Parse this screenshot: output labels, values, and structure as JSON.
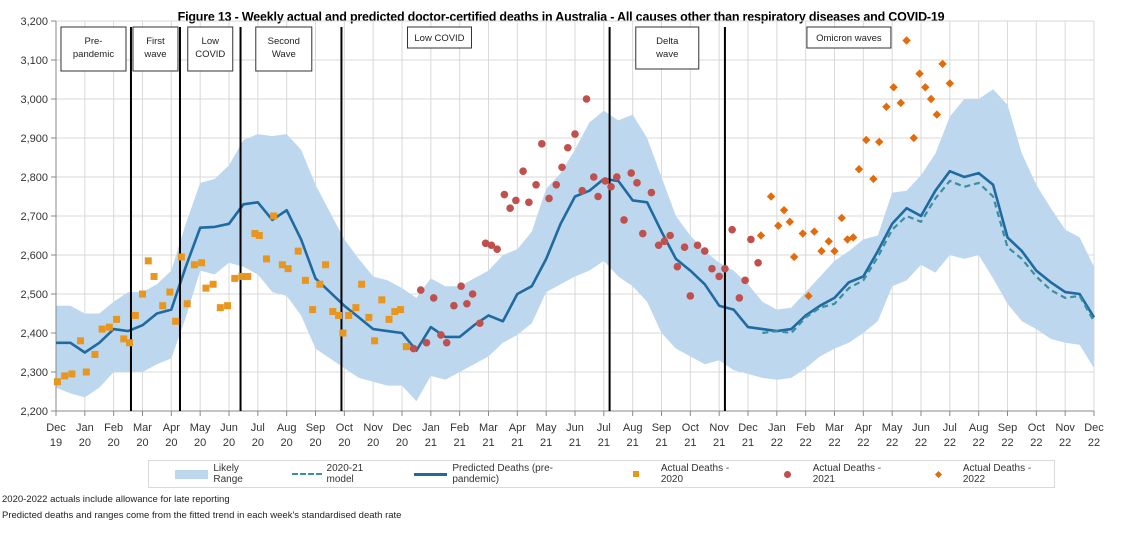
{
  "title": "Figure 13 - Weekly actual and predicted doctor-certified deaths in Australia - All causes other than respiratory diseases and COVID-19",
  "notes": [
    "2020-2022 actuals include allowance for late reporting",
    "Predicted deaths and ranges come from the fitted trend in each week's standardised death rate"
  ],
  "legend": {
    "likely_range": "Likely Range",
    "model_2021": "2020-21 model",
    "predicted": "Predicted Deaths (pre-pandemic)",
    "actual_2020": "Actual Deaths - 2020",
    "actual_2021": "Actual Deaths - 2021",
    "actual_2022": "Actual Deaths - 2022"
  },
  "colors": {
    "range": "#bdd7ee",
    "predicted": "#1f6aa0",
    "model_2021": "#3a8ea0",
    "actual_2020": "#e8961e",
    "actual_2021": "#c0504d",
    "actual_2022": "#e36c0a",
    "grid": "#d9d9d9",
    "period_line": "#000000"
  },
  "chart_data": {
    "type": "line",
    "title": "Figure 13 - Weekly actual and predicted doctor-certified deaths in Australia - All causes other than respiratory diseases and COVID-19",
    "xlabel": "",
    "ylabel": "",
    "ylim": [
      2200,
      3200
    ],
    "yticks": [
      2200,
      2300,
      2400,
      2500,
      2600,
      2700,
      2800,
      2900,
      3000,
      3100,
      3200
    ],
    "ytick_labels": [
      "2,200",
      "2,300",
      "2,400",
      "2,500",
      "2,600",
      "2,700",
      "2,800",
      "2,900",
      "3,000",
      "3,100",
      "3,200"
    ],
    "x_unit": "months since Dec 2019",
    "xlim": [
      0,
      36
    ],
    "xtick_labels": [
      [
        "Dec",
        "19"
      ],
      [
        "Jan",
        "20"
      ],
      [
        "Feb",
        "20"
      ],
      [
        "Mar",
        "20"
      ],
      [
        "Apr",
        "20"
      ],
      [
        "May",
        "20"
      ],
      [
        "Jun",
        "20"
      ],
      [
        "Jul",
        "20"
      ],
      [
        "Aug",
        "20"
      ],
      [
        "Sep",
        "20"
      ],
      [
        "Oct",
        "20"
      ],
      [
        "Nov",
        "20"
      ],
      [
        "Dec",
        "20"
      ],
      [
        "Jan",
        "21"
      ],
      [
        "Feb",
        "21"
      ],
      [
        "Mar",
        "21"
      ],
      [
        "Apr",
        "21"
      ],
      [
        "May",
        "21"
      ],
      [
        "Jun",
        "21"
      ],
      [
        "Jul",
        "21"
      ],
      [
        "Aug",
        "21"
      ],
      [
        "Sep",
        "21"
      ],
      [
        "Oct",
        "21"
      ],
      [
        "Nov",
        "21"
      ],
      [
        "Dec",
        "21"
      ],
      [
        "Jan",
        "22"
      ],
      [
        "Feb",
        "22"
      ],
      [
        "Mar",
        "22"
      ],
      [
        "Apr",
        "22"
      ],
      [
        "May",
        "22"
      ],
      [
        "Jun",
        "22"
      ],
      [
        "Jul",
        "22"
      ],
      [
        "Aug",
        "22"
      ],
      [
        "Sep",
        "22"
      ],
      [
        "Oct",
        "22"
      ],
      [
        "Nov",
        "22"
      ],
      [
        "Dec",
        "22"
      ]
    ],
    "grid": true,
    "legend_position": "bottom",
    "periods": [
      {
        "label": [
          "Pre-",
          "pandemic"
        ],
        "start": 0,
        "end": 2.6
      },
      {
        "label": [
          "First",
          "wave"
        ],
        "start": 2.6,
        "end": 4.3
      },
      {
        "label": [
          "Low",
          "COVID"
        ],
        "start": 4.3,
        "end": 6.4
      },
      {
        "label": [
          "Second",
          "Wave"
        ],
        "start": 6.4,
        "end": 9.9
      },
      {
        "label": [
          "Low COVID"
        ],
        "start": 9.9,
        "end": 19.2
      },
      {
        "label": [
          "Delta",
          "wave"
        ],
        "start": 19.2,
        "end": 23.2
      },
      {
        "label": [
          "Omicron waves"
        ],
        "start": 23.2,
        "end": 36
      }
    ],
    "period_boundaries": [
      2.6,
      4.3,
      6.4,
      9.9,
      19.2,
      23.2
    ],
    "likely_range": {
      "x": [
        0,
        0.5,
        1,
        1.5,
        2,
        2.5,
        3,
        3.5,
        4,
        4.5,
        5,
        5.5,
        6,
        6.5,
        7,
        7.5,
        8,
        8.5,
        9,
        9.5,
        10,
        10.5,
        11,
        11.5,
        12,
        12.5,
        13,
        13.5,
        14,
        14.5,
        15,
        15.5,
        16,
        16.5,
        17,
        17.5,
        18,
        18.5,
        19,
        19.5,
        20,
        20.5,
        21,
        21.5,
        22,
        22.5,
        23,
        23.5,
        24,
        24.5,
        25,
        25.5,
        26,
        26.5,
        27,
        27.5,
        28,
        28.5,
        29,
        29.5,
        30,
        30.5,
        31,
        31.5,
        32,
        32.5,
        33,
        33.5,
        34,
        34.5,
        35,
        35.5,
        36
      ],
      "upper": [
        2470,
        2470,
        2450,
        2450,
        2480,
        2505,
        2505,
        2525,
        2560,
        2680,
        2785,
        2795,
        2830,
        2895,
        2910,
        2905,
        2910,
        2870,
        2780,
        2710,
        2640,
        2590,
        2545,
        2535,
        2515,
        2490,
        2540,
        2520,
        2520,
        2540,
        2560,
        2600,
        2615,
        2660,
        2770,
        2810,
        2870,
        2940,
        2970,
        2945,
        2960,
        2900,
        2800,
        2700,
        2650,
        2610,
        2580,
        2560,
        2525,
        2480,
        2460,
        2465,
        2505,
        2545,
        2585,
        2610,
        2640,
        2650,
        2760,
        2765,
        2805,
        2860,
        2955,
        3000,
        3000,
        3025,
        2985,
        2860,
        2780,
        2720,
        2665,
        2645,
        2570
      ],
      "lower": [
        2260,
        2245,
        2235,
        2260,
        2300,
        2300,
        2300,
        2320,
        2335,
        2440,
        2560,
        2550,
        2580,
        2570,
        2550,
        2505,
        2495,
        2445,
        2360,
        2335,
        2310,
        2285,
        2275,
        2265,
        2265,
        2225,
        2290,
        2280,
        2300,
        2320,
        2340,
        2375,
        2395,
        2425,
        2505,
        2525,
        2545,
        2560,
        2585,
        2545,
        2520,
        2480,
        2400,
        2360,
        2340,
        2320,
        2330,
        2305,
        2295,
        2285,
        2280,
        2285,
        2310,
        2340,
        2360,
        2375,
        2400,
        2430,
        2520,
        2535,
        2575,
        2555,
        2600,
        2590,
        2600,
        2540,
        2475,
        2430,
        2410,
        2385,
        2375,
        2370,
        2310
      ]
    },
    "series": [
      {
        "name": "Predicted Deaths (pre-pandemic)",
        "style": "solid",
        "x": [
          0,
          0.5,
          1,
          1.5,
          2,
          2.5,
          3,
          3.5,
          4,
          4.5,
          5,
          5.5,
          6,
          6.5,
          7,
          7.5,
          8,
          8.5,
          9,
          9.5,
          10,
          10.5,
          11,
          11.5,
          12,
          12.5,
          13,
          13.5,
          14,
          14.5,
          15,
          15.5,
          16,
          16.5,
          17,
          17.5,
          18,
          18.5,
          19,
          19.5,
          20,
          20.5,
          21,
          21.5,
          22,
          22.5,
          23,
          23.5,
          24,
          24.5,
          25,
          25.5,
          26,
          26.5,
          27,
          27.5,
          28,
          28.5,
          29,
          29.5,
          30,
          30.5,
          31,
          31.5,
          32,
          32.5,
          33,
          33.5,
          34,
          34.5,
          35,
          35.5,
          36
        ],
        "values": [
          2375,
          2375,
          2350,
          2375,
          2410,
          2405,
          2420,
          2450,
          2460,
          2570,
          2670,
          2672,
          2680,
          2730,
          2735,
          2690,
          2715,
          2640,
          2540,
          2505,
          2470,
          2440,
          2410,
          2405,
          2400,
          2355,
          2415,
          2390,
          2390,
          2420,
          2445,
          2430,
          2500,
          2520,
          2590,
          2680,
          2750,
          2765,
          2795,
          2790,
          2740,
          2735,
          2660,
          2590,
          2560,
          2525,
          2470,
          2460,
          2415,
          2410,
          2405,
          2410,
          2445,
          2470,
          2490,
          2530,
          2545,
          2610,
          2680,
          2720,
          2700,
          2765,
          2815,
          2800,
          2810,
          2780,
          2645,
          2610,
          2560,
          2530,
          2505,
          2500,
          2440
        ]
      },
      {
        "name": "2020-21 model",
        "style": "dashed",
        "x": [
          24.5,
          25,
          25.5,
          26,
          26.5,
          27,
          27.5,
          28,
          28.5,
          29,
          29.5,
          30,
          30.5,
          31,
          31.5,
          32,
          32.5,
          33,
          33.5,
          34,
          34.5,
          35,
          35.5,
          36
        ],
        "values": [
          2400,
          2405,
          2400,
          2440,
          2465,
          2475,
          2515,
          2535,
          2595,
          2665,
          2700,
          2685,
          2745,
          2790,
          2775,
          2785,
          2750,
          2620,
          2590,
          2545,
          2510,
          2490,
          2495,
          2430
        ]
      }
    ],
    "actual_2020": {
      "x": [
        0.05,
        0.3,
        0.55,
        0.85,
        1.05,
        1.35,
        1.6,
        1.85,
        2.1,
        2.35,
        2.55,
        2.75,
        3.0,
        3.2,
        3.4,
        3.7,
        3.95,
        4.15,
        4.35,
        4.55,
        4.8,
        5.05,
        5.2,
        5.45,
        5.7,
        5.95,
        6.2,
        6.45,
        6.65,
        6.9,
        7.05,
        7.3,
        7.55,
        7.85,
        8.05,
        8.4,
        8.65,
        8.9,
        9.15,
        9.35,
        9.6,
        9.8,
        9.95,
        10.15,
        10.4,
        10.6,
        10.85,
        11.05,
        11.3,
        11.55,
        11.75,
        11.95,
        12.15
      ],
      "values": [
        2275,
        2290,
        2295,
        2380,
        2300,
        2345,
        2410,
        2415,
        2435,
        2385,
        2375,
        2445,
        2500,
        2585,
        2545,
        2470,
        2505,
        2430,
        2595,
        2475,
        2575,
        2580,
        2515,
        2525,
        2465,
        2470,
        2540,
        2545,
        2545,
        2655,
        2650,
        2590,
        2700,
        2575,
        2565,
        2610,
        2535,
        2460,
        2525,
        2575,
        2455,
        2445,
        2400,
        2445,
        2465,
        2525,
        2440,
        2380,
        2485,
        2435,
        2455,
        2460,
        2365
      ]
    },
    "actual_2021": {
      "x": [
        12.4,
        12.65,
        12.85,
        13.1,
        13.35,
        13.55,
        13.8,
        14.05,
        14.25,
        14.45,
        14.7,
        14.9,
        15.1,
        15.3,
        15.55,
        15.75,
        15.95,
        16.2,
        16.4,
        16.65,
        16.85,
        17.1,
        17.35,
        17.55,
        17.75,
        18.0,
        18.25,
        18.4,
        18.65,
        18.8,
        19.05,
        19.25,
        19.45,
        19.7,
        19.95,
        20.15,
        20.35,
        20.65,
        20.9,
        21.1,
        21.3,
        21.55,
        21.8,
        22.0,
        22.25,
        22.5,
        22.75,
        23.0,
        23.2,
        23.45,
        23.7,
        23.9,
        24.1,
        24.35
      ],
      "values": [
        2360,
        2510,
        2375,
        2490,
        2395,
        2375,
        2470,
        2520,
        2475,
        2500,
        2425,
        2630,
        2625,
        2615,
        2755,
        2720,
        2740,
        2815,
        2735,
        2780,
        2885,
        2745,
        2780,
        2825,
        2875,
        2910,
        2765,
        3000,
        2800,
        2750,
        2790,
        2775,
        2800,
        2690,
        2810,
        2785,
        2655,
        2760,
        2625,
        2635,
        2650,
        2570,
        2620,
        2495,
        2625,
        2610,
        2565,
        2545,
        2565,
        2665,
        2490,
        2535,
        2640,
        2580
      ]
    },
    "actual_2022": {
      "x": [
        24.45,
        24.8,
        25.05,
        25.25,
        25.45,
        25.6,
        25.9,
        26.1,
        26.3,
        26.55,
        26.8,
        27.0,
        27.25,
        27.45,
        27.65,
        27.85,
        28.1,
        28.35,
        28.55,
        28.8,
        29.05,
        29.3,
        29.5,
        29.75,
        29.95,
        30.15,
        30.35,
        30.55,
        30.75,
        31.0
      ],
      "values": [
        2650,
        2750,
        2675,
        2715,
        2685,
        2595,
        2655,
        2495,
        2660,
        2610,
        2635,
        2610,
        2695,
        2640,
        2645,
        2820,
        2895,
        2795,
        2890,
        2980,
        3030,
        2990,
        3150,
        2900,
        3065,
        3030,
        3000,
        2960,
        3090,
        3040
      ]
    }
  }
}
